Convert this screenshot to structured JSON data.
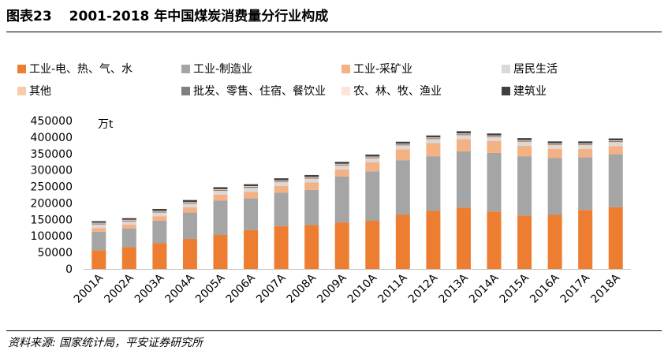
{
  "header": {
    "figure_label": "图表23",
    "title": "2001-2018 年中国煤炭消费量分行业构成"
  },
  "footer": {
    "source": "资料来源: 国家统计局，平安证券研究所"
  },
  "chart_data": {
    "type": "bar",
    "stacked": true,
    "title": "2001-2018 年中国煤炭消费量分行业构成",
    "unit_label": "万t",
    "ylim": [
      0,
      450000
    ],
    "yticks": [
      0,
      50000,
      100000,
      150000,
      200000,
      250000,
      300000,
      350000,
      400000,
      450000
    ],
    "categories": [
      "2001A",
      "2002A",
      "2003A",
      "2004A",
      "2005A",
      "2006A",
      "2007A",
      "2008A",
      "2009A",
      "2010A",
      "2011A",
      "2012A",
      "2013A",
      "2014A",
      "2015A",
      "2016A",
      "2017A",
      "2018A"
    ],
    "series": [
      {
        "name": "工业-电、热、气、水",
        "color": "#ED7D31",
        "values": [
          57000,
          66000,
          78000,
          91000,
          103000,
          118000,
          130000,
          133000,
          141000,
          146000,
          165000,
          176000,
          186000,
          174000,
          162000,
          164000,
          179000,
          187000
        ]
      },
      {
        "name": "工业-制造业",
        "color": "#A5A5A5",
        "values": [
          56000,
          57000,
          68000,
          80000,
          104000,
          96000,
          101000,
          107000,
          139000,
          150000,
          165000,
          166000,
          171000,
          178000,
          180000,
          173000,
          160000,
          161000
        ]
      },
      {
        "name": "工业-采矿业",
        "color": "#F4B183",
        "values": [
          11000,
          11000,
          14000,
          16000,
          18000,
          20000,
          21000,
          22000,
          22000,
          28000,
          33000,
          40000,
          37000,
          36000,
          32000,
          27000,
          25000,
          25000
        ]
      },
      {
        "name": "居民生活",
        "color": "#D9D9D9",
        "values": [
          8000,
          7000,
          8000,
          8000,
          9000,
          9000,
          9000,
          9000,
          9000,
          9000,
          9000,
          9000,
          9000,
          9000,
          9000,
          9000,
          9000,
          9000
        ]
      },
      {
        "name": "其他",
        "color": "#F8CBAD",
        "values": [
          3000,
          3000,
          3000,
          3000,
          3000,
          3000,
          3000,
          3000,
          3000,
          3000,
          3000,
          3000,
          3000,
          3000,
          3000,
          3000,
          3000,
          3000
        ]
      },
      {
        "name": "批发、零售、住宿、餐饮业",
        "color": "#7F7F7F",
        "values": [
          3000,
          3000,
          3000,
          3000,
          3000,
          3000,
          3000,
          3000,
          3000,
          3000,
          3000,
          3000,
          3000,
          3000,
          3000,
          3000,
          3000,
          3000
        ]
      },
      {
        "name": "农、林、牧、渔业",
        "color": "#FBE5D6",
        "values": [
          2000,
          2000,
          2000,
          2000,
          2000,
          2000,
          2000,
          2000,
          2000,
          2000,
          2000,
          2000,
          2000,
          2000,
          2000,
          2000,
          2000,
          2000
        ]
      },
      {
        "name": "建筑业",
        "color": "#404040",
        "values": [
          5000,
          5000,
          6000,
          6000,
          6000,
          6000,
          6000,
          6000,
          6000,
          6000,
          6000,
          6000,
          7000,
          6000,
          6000,
          6000,
          6000,
          6000
        ]
      }
    ]
  }
}
